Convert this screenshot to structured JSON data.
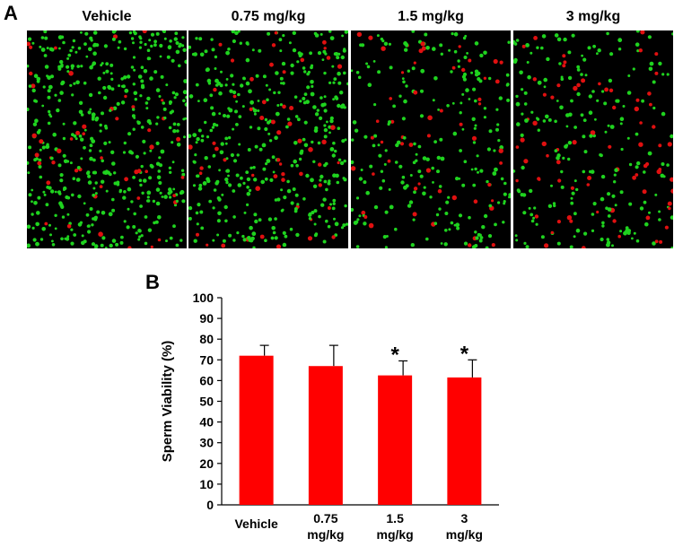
{
  "panel_a": {
    "letter": "A",
    "images": [
      {
        "label": "Vehicle",
        "density": 1.0,
        "red_fraction": 0.1
      },
      {
        "label": "0.75 mg/kg",
        "density": 0.85,
        "red_fraction": 0.12
      },
      {
        "label": "1.5 mg/kg",
        "density": 0.55,
        "red_fraction": 0.22
      },
      {
        "label": "3 mg/kg",
        "density": 0.55,
        "red_fraction": 0.25
      }
    ],
    "colors": {
      "live": "#1fd31f",
      "dead": "#e01010",
      "background": "#000000"
    }
  },
  "panel_b": {
    "letter": "B",
    "chart_data": {
      "type": "bar",
      "categories": [
        [
          "Vehicle"
        ],
        [
          "0.75",
          "mg/kg"
        ],
        [
          "1.5",
          "mg/kg"
        ],
        [
          "3",
          "mg/kg"
        ]
      ],
      "values": [
        72,
        67,
        62.5,
        61.5
      ],
      "errors": [
        5,
        10,
        7,
        8.5
      ],
      "significance": [
        "",
        "",
        "*",
        "*"
      ],
      "title": "",
      "xlabel": "",
      "ylabel": "Sperm Viability  (%)",
      "ylim": [
        0,
        100
      ],
      "yticks": [
        0,
        10,
        20,
        30,
        40,
        50,
        60,
        70,
        80,
        90,
        100
      ],
      "grid": false,
      "bar_color": "#ff0000"
    }
  }
}
